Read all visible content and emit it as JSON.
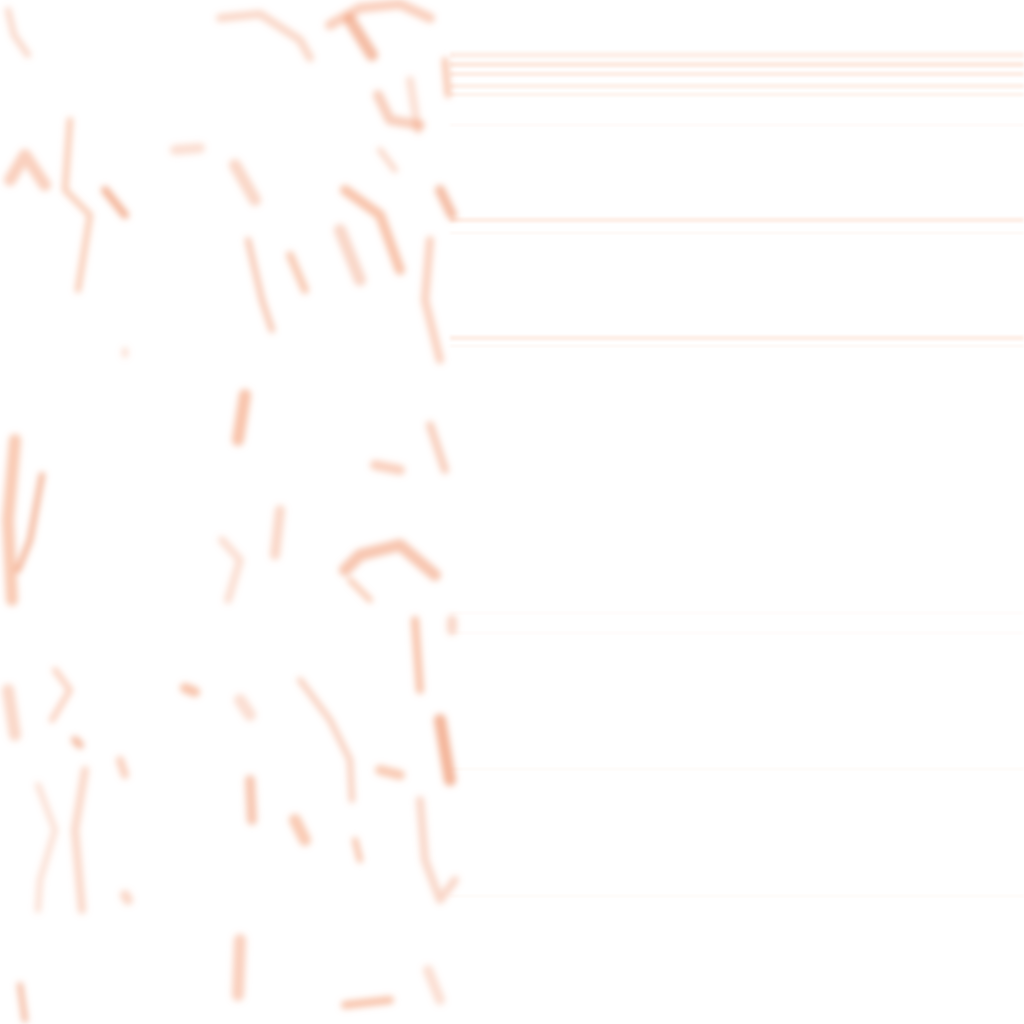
{
  "palette": {
    "background": "#ffffff",
    "blotch": "#f4a07a",
    "blotch_strong": "#ee8a5e",
    "streak": "#fbd2bd"
  }
}
